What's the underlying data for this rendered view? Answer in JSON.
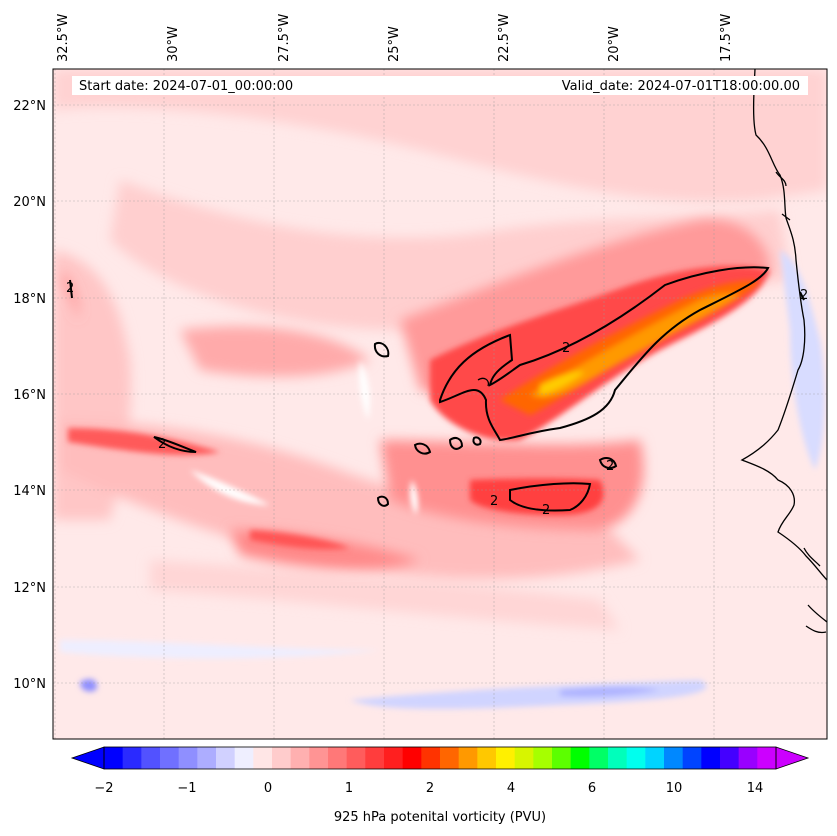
{
  "header": {
    "start_date": "Start date: 2024-07-01_00:00:00",
    "valid_date": "Valid_date: 2024-07-01T18:00:00.00"
  },
  "map": {
    "lon_labels": [
      "32.5°W",
      "30°W",
      "27.5°W",
      "25°W",
      "22.5°W",
      "20°W",
      "17.5°W"
    ],
    "lat_labels": [
      "22°N",
      "20°N",
      "18°N",
      "16°N",
      "14°N",
      "12°N",
      "10°N"
    ],
    "contour_label": "2",
    "gridlines": "dotted"
  },
  "colorbar": {
    "label": "925 hPa potenital vorticity (PVU)",
    "tick_labels": [
      "−2",
      "−1",
      "0",
      "1",
      "2",
      "4",
      "6",
      "10",
      "14"
    ],
    "colors": [
      "#0000ff",
      "#2a2aff",
      "#5252ff",
      "#7070ff",
      "#8f8fff",
      "#adadff",
      "#d1d1ff",
      "#efefff",
      "#ffe6e6",
      "#ffcccc",
      "#ffb0b0",
      "#ff9494",
      "#ff7878",
      "#ff5c5c",
      "#ff3d3d",
      "#ff1f1f",
      "#ff0000",
      "#ff3300",
      "#ff6600",
      "#ff9900",
      "#ffc800",
      "#fff000",
      "#d7f500",
      "#a6ff00",
      "#5cff00",
      "#00ff00",
      "#00ff66",
      "#00ffbb",
      "#00ffee",
      "#00d4ff",
      "#0088ff",
      "#0044ff",
      "#0000ff",
      "#4400ff",
      "#9900ff",
      "#cc00ff"
    ]
  }
}
